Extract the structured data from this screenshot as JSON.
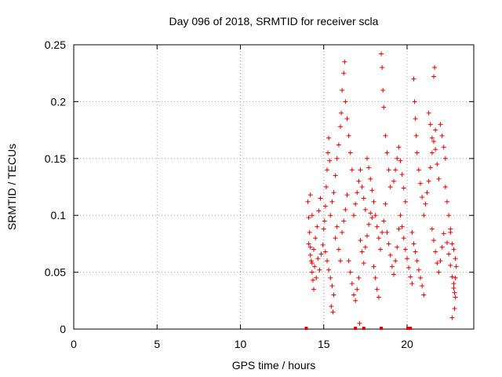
{
  "chart_data": {
    "type": "scatter",
    "title": "Day 096 of 2018, SRMTID for receiver scla",
    "xlabel": "GPS time / hours",
    "ylabel": "SRMTID / TECUs",
    "xlim": [
      0,
      24
    ],
    "ylim": [
      0,
      0.25
    ],
    "xticks": [
      0,
      5,
      10,
      15,
      20
    ],
    "yticks": [
      0,
      0.05,
      0.1,
      0.15,
      0.2,
      0.25
    ],
    "xtick_labels": [
      "0",
      "5",
      "10",
      "15",
      "20"
    ],
    "ytick_labels": [
      "0",
      "0.05",
      "0.1",
      "0.15",
      "0.2",
      "0.25"
    ],
    "grid": true,
    "marker": "+",
    "color": "#e00000",
    "series": [
      {
        "points": [
          [
            14.05,
            0.112
          ],
          [
            14.1,
            0.098
          ],
          [
            14.15,
            0.085
          ],
          [
            14.2,
            0.072
          ],
          [
            14.25,
            0.06
          ],
          [
            14.3,
            0.05
          ],
          [
            14.35,
            0.043
          ],
          [
            14.4,
            0.035
          ],
          [
            14.1,
            0.075
          ],
          [
            14.2,
            0.065
          ],
          [
            14.3,
            0.058
          ],
          [
            14.4,
            0.07
          ],
          [
            14.5,
            0.08
          ],
          [
            14.6,
            0.09
          ],
          [
            14.7,
            0.104
          ],
          [
            14.8,
            0.115
          ],
          [
            14.2,
            0.118
          ],
          [
            14.3,
            0.1
          ],
          [
            14.45,
            0.055
          ],
          [
            14.55,
            0.045
          ],
          [
            14.65,
            0.062
          ],
          [
            14.75,
            0.052
          ],
          [
            14.85,
            0.066
          ],
          [
            14.95,
            0.074
          ],
          [
            15.0,
            0.088
          ],
          [
            15.05,
            0.095
          ],
          [
            15.1,
            0.108
          ],
          [
            15.15,
            0.125
          ],
          [
            15.2,
            0.14
          ],
          [
            15.25,
            0.155
          ],
          [
            15.3,
            0.168
          ],
          [
            15.35,
            0.148
          ],
          [
            15.1,
            0.068
          ],
          [
            15.2,
            0.06
          ],
          [
            15.3,
            0.052
          ],
          [
            15.4,
            0.045
          ],
          [
            15.5,
            0.038
          ],
          [
            15.6,
            0.03
          ],
          [
            15.45,
            0.02
          ],
          [
            15.55,
            0.015
          ],
          [
            15.4,
            0.1
          ],
          [
            15.5,
            0.112
          ],
          [
            15.6,
            0.12
          ],
          [
            15.7,
            0.135
          ],
          [
            15.8,
            0.15
          ],
          [
            15.9,
            0.162
          ],
          [
            16.0,
            0.178
          ],
          [
            16.05,
            0.19
          ],
          [
            15.7,
            0.08
          ],
          [
            15.8,
            0.09
          ],
          [
            15.9,
            0.07
          ],
          [
            16.0,
            0.06
          ],
          [
            16.1,
            0.085
          ],
          [
            16.2,
            0.095
          ],
          [
            16.3,
            0.105
          ],
          [
            16.4,
            0.118
          ],
          [
            16.1,
            0.21
          ],
          [
            16.2,
            0.225
          ],
          [
            16.25,
            0.235
          ],
          [
            16.3,
            0.2
          ],
          [
            16.4,
            0.185
          ],
          [
            16.5,
            0.17
          ],
          [
            16.6,
            0.155
          ],
          [
            16.7,
            0.14
          ],
          [
            16.5,
            0.06
          ],
          [
            16.6,
            0.05
          ],
          [
            16.7,
            0.04
          ],
          [
            16.8,
            0.03
          ],
          [
            16.9,
            0.025
          ],
          [
            17.0,
            0.035
          ],
          [
            17.1,
            0.045
          ],
          [
            17.15,
            0.005
          ],
          [
            16.8,
            0.1
          ],
          [
            16.9,
            0.11
          ],
          [
            17.0,
            0.12
          ],
          [
            17.1,
            0.13
          ],
          [
            17.2,
            0.14
          ],
          [
            17.3,
            0.125
          ],
          [
            17.4,
            0.115
          ],
          [
            17.5,
            0.105
          ],
          [
            17.2,
            0.078
          ],
          [
            17.3,
            0.068
          ],
          [
            17.4,
            0.058
          ],
          [
            17.5,
            0.072
          ],
          [
            17.6,
            0.082
          ],
          [
            17.7,
            0.092
          ],
          [
            17.8,
            0.102
          ],
          [
            17.9,
            0.098
          ],
          [
            17.6,
            0.15
          ],
          [
            17.7,
            0.142
          ],
          [
            17.8,
            0.132
          ],
          [
            17.9,
            0.122
          ],
          [
            18.0,
            0.112
          ],
          [
            18.1,
            0.1
          ],
          [
            18.2,
            0.09
          ],
          [
            18.3,
            0.08
          ],
          [
            18.0,
            0.055
          ],
          [
            18.1,
            0.045
          ],
          [
            18.2,
            0.035
          ],
          [
            18.3,
            0.028
          ],
          [
            18.4,
            0.07
          ],
          [
            18.5,
            0.085
          ],
          [
            18.6,
            0.095
          ],
          [
            18.7,
            0.11
          ],
          [
            18.45,
            0.242
          ],
          [
            18.5,
            0.23
          ],
          [
            18.55,
            0.21
          ],
          [
            18.6,
            0.195
          ],
          [
            18.7,
            0.17
          ],
          [
            18.8,
            0.155
          ],
          [
            18.9,
            0.14
          ],
          [
            19.0,
            0.125
          ],
          [
            18.8,
            0.085
          ],
          [
            18.9,
            0.075
          ],
          [
            19.0,
            0.065
          ],
          [
            19.1,
            0.055
          ],
          [
            19.2,
            0.048
          ],
          [
            19.3,
            0.06
          ],
          [
            19.4,
            0.072
          ],
          [
            19.5,
            0.088
          ],
          [
            19.2,
            0.13
          ],
          [
            19.3,
            0.14
          ],
          [
            19.4,
            0.15
          ],
          [
            19.5,
            0.16
          ],
          [
            19.6,
            0.148
          ],
          [
            19.7,
            0.136
          ],
          [
            19.8,
            0.124
          ],
          [
            19.9,
            0.112
          ],
          [
            19.6,
            0.1
          ],
          [
            19.7,
            0.09
          ],
          [
            19.8,
            0.08
          ],
          [
            19.9,
            0.07
          ],
          [
            20.0,
            0.062
          ],
          [
            20.1,
            0.054
          ],
          [
            20.2,
            0.046
          ],
          [
            20.3,
            0.04
          ],
          [
            20.4,
            0.22
          ],
          [
            20.45,
            0.2
          ],
          [
            20.5,
            0.185
          ],
          [
            20.55,
            0.17
          ],
          [
            20.6,
            0.155
          ],
          [
            20.7,
            0.14
          ],
          [
            20.8,
            0.128
          ],
          [
            20.9,
            0.116
          ],
          [
            20.3,
            0.085
          ],
          [
            20.4,
            0.075
          ],
          [
            20.5,
            0.068
          ],
          [
            20.6,
            0.06
          ],
          [
            20.7,
            0.052
          ],
          [
            20.8,
            0.045
          ],
          [
            20.9,
            0.038
          ],
          [
            21.0,
            0.03
          ],
          [
            21.0,
            0.1
          ],
          [
            21.1,
            0.11
          ],
          [
            21.2,
            0.12
          ],
          [
            21.3,
            0.13
          ],
          [
            21.4,
            0.142
          ],
          [
            21.5,
            0.155
          ],
          [
            21.6,
            0.165
          ],
          [
            21.7,
            0.175
          ],
          [
            21.3,
            0.19
          ],
          [
            21.4,
            0.18
          ],
          [
            21.5,
            0.168
          ],
          [
            21.6,
            0.222
          ],
          [
            21.65,
            0.23
          ],
          [
            21.7,
            0.158
          ],
          [
            21.8,
            0.145
          ],
          [
            21.9,
            0.132
          ],
          [
            21.5,
            0.088
          ],
          [
            21.6,
            0.078
          ],
          [
            21.7,
            0.068
          ],
          [
            21.8,
            0.058
          ],
          [
            21.9,
            0.05
          ],
          [
            22.0,
            0.06
          ],
          [
            22.1,
            0.072
          ],
          [
            22.2,
            0.084
          ],
          [
            22.0,
            0.18
          ],
          [
            22.1,
            0.17
          ],
          [
            22.2,
            0.16
          ],
          [
            22.3,
            0.15
          ],
          [
            22.3,
            0.125
          ],
          [
            22.4,
            0.112
          ],
          [
            22.5,
            0.1
          ],
          [
            22.6,
            0.088
          ],
          [
            22.4,
            0.076
          ],
          [
            22.5,
            0.066
          ],
          [
            22.6,
            0.056
          ],
          [
            22.7,
            0.046
          ],
          [
            22.8,
            0.036
          ],
          [
            22.9,
            0.028
          ],
          [
            22.85,
            0.018
          ],
          [
            22.7,
            0.01
          ],
          [
            22.6,
            0.085
          ],
          [
            22.7,
            0.075
          ],
          [
            22.8,
            0.07
          ],
          [
            22.9,
            0.062
          ],
          [
            22.95,
            0.055
          ],
          [
            22.9,
            0.045
          ],
          [
            22.8,
            0.04
          ],
          [
            22.85,
            0.032
          ]
        ]
      }
    ],
    "bottom_marks": [
      13.95,
      16.9,
      17.4,
      18.45,
      20.05,
      20.2
    ]
  }
}
